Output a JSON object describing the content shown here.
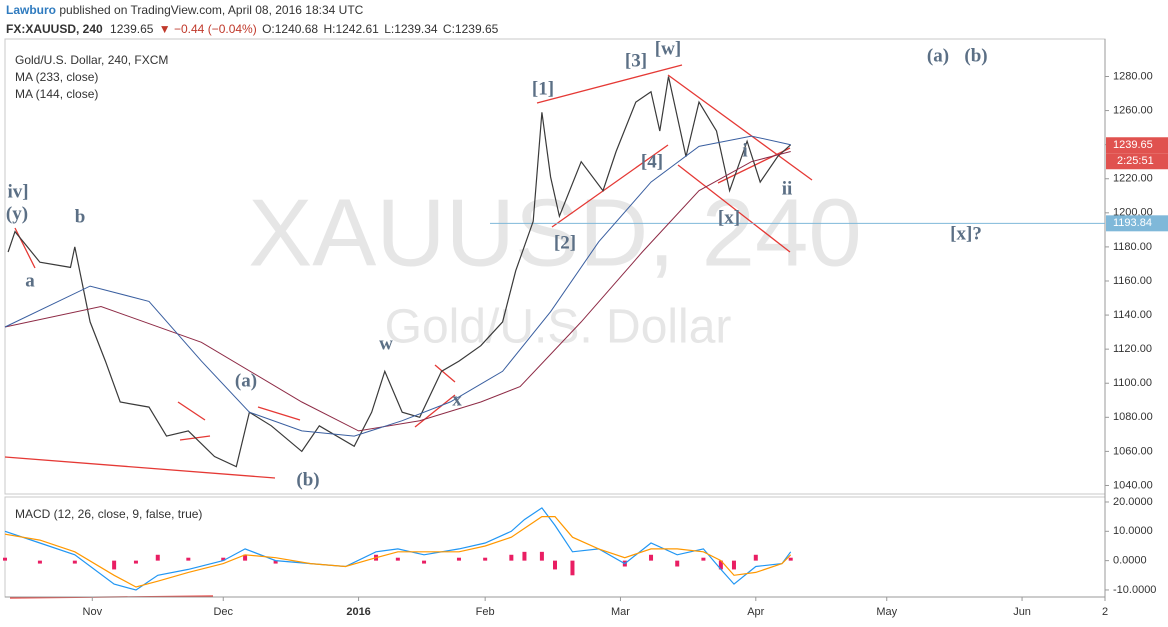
{
  "header": {
    "author": "Lawburo",
    "published": "published on TradingView.com, April 08, 2016 18:34 UTC",
    "symbol": "FX:XAUUSD, 240",
    "last": "1239.65",
    "change": "▼ −0.44 (−0.04%)",
    "open": "O:1240.68",
    "high": "H:1242.61",
    "low": "L:1239.34",
    "close": "C:1239.65"
  },
  "chart_data": [
    {
      "type": "line",
      "title": "Gold/U.S. Dollar, 240, FXCM",
      "watermark": "XAUUSD, 240",
      "watermark_subtitle": "Gold/U.S. Dollar",
      "xlim": [
        0,
        252
      ],
      "xticks": [
        {
          "value": 20,
          "label": "Nov"
        },
        {
          "value": 50,
          "label": "Dec"
        },
        {
          "value": 81,
          "label": "2016"
        },
        {
          "value": 110,
          "label": "Feb"
        },
        {
          "value": 141,
          "label": "Mar"
        },
        {
          "value": 172,
          "label": "Apr"
        },
        {
          "value": 202,
          "label": "May"
        },
        {
          "value": 233,
          "label": "Jun"
        },
        {
          "value": 252,
          "label": "2"
        }
      ],
      "ylim": [
        1035,
        1302
      ],
      "yticks": [
        {
          "value": 1040,
          "label": "1040.00"
        },
        {
          "value": 1060,
          "label": "1060.00"
        },
        {
          "value": 1080,
          "label": "1080.00"
        },
        {
          "value": 1100,
          "label": "1100.00"
        },
        {
          "value": 1120,
          "label": "1120.00"
        },
        {
          "value": 1140,
          "label": "1140.00"
        },
        {
          "value": 1160,
          "label": "1160.00"
        },
        {
          "value": 1180,
          "label": "1180.00"
        },
        {
          "value": 1200,
          "label": "1200.00"
        },
        {
          "value": 1220,
          "label": "1220.00"
        },
        {
          "value": 1240,
          "label": "1240.00"
        },
        {
          "value": 1260,
          "label": "1260.00"
        },
        {
          "value": 1280,
          "label": "1280.00"
        }
      ],
      "series": [
        {
          "color": "#3a3a3a",
          "x": [
            0.7,
            2.3,
            8,
            15,
            16,
            19.5,
            23,
            26.4,
            33,
            37,
            42,
            48,
            53,
            56,
            61,
            68,
            72,
            80,
            84,
            87,
            91,
            95,
            100,
            104,
            109,
            114,
            117,
            121,
            123,
            125,
            127,
            132,
            137,
            140,
            144.5,
            148,
            150,
            152,
            156,
            159,
            163,
            166,
            170,
            173,
            177,
            180
          ],
          "values": [
            1177,
            1189,
            1171,
            1168,
            1180,
            1136,
            1113,
            1089,
            1086,
            1069,
            1072,
            1057,
            1051,
            1083,
            1075,
            1060,
            1075,
            1063,
            1083,
            1107,
            1083,
            1080,
            1107,
            1113,
            1122,
            1136,
            1166,
            1195,
            1259,
            1221,
            1198,
            1230,
            1213,
            1236,
            1265,
            1271,
            1248,
            1280,
            1233,
            1265,
            1248,
            1213,
            1242,
            1218,
            1233,
            1240
          ]
        },
        {
          "name": "MA (233, close)",
          "color": "#8e2b46",
          "x": [
            0,
            22,
            45,
            68,
            81,
            95,
            109,
            118,
            132,
            146,
            159,
            171,
            180
          ],
          "values": [
            1133,
            1145,
            1124,
            1089,
            1072,
            1078,
            1089,
            1098,
            1136,
            1177,
            1213,
            1230,
            1236
          ]
        },
        {
          "name": "MA (144, close)",
          "color": "#3a5fa0",
          "x": [
            0,
            19.5,
            33,
            45,
            56,
            68,
            80,
            91,
            102,
            114,
            125,
            136,
            148,
            159,
            171,
            180
          ],
          "values": [
            1133,
            1157,
            1148,
            1113,
            1083,
            1072,
            1069,
            1078,
            1089,
            1107,
            1142,
            1183,
            1218,
            1239,
            1245,
            1240
          ]
        }
      ],
      "hline": 1193.84,
      "hline_color": "#7fb8d9",
      "last_price": 1239.65,
      "last_color": "#e0524f",
      "countdown": "2:25:51",
      "annotations": [
        "iv]",
        "(y)",
        "a",
        "b",
        "(a)",
        "(b)",
        "w",
        "x",
        "[1]",
        "[2]",
        "[3]",
        "[w]",
        "[4]",
        "[x]",
        "i",
        "ii",
        "(a)",
        "(b)",
        "[x]?"
      ]
    },
    {
      "type": "line",
      "title": "MACD (12, 26, close, 9, false, true)",
      "xlim": [
        0,
        252
      ],
      "ylim": [
        -12.4,
        21.7
      ],
      "yticks": [
        {
          "value": 20,
          "label": "20.0000"
        },
        {
          "value": 10,
          "label": "10.0000"
        },
        {
          "value": 0,
          "label": "0.0000"
        },
        {
          "value": -10,
          "label": "-10.0000"
        }
      ],
      "x": [
        0,
        8,
        16,
        25,
        30,
        35,
        42,
        50,
        55,
        62,
        70,
        78,
        85,
        90,
        96,
        104,
        110,
        116,
        119,
        123,
        126,
        130,
        136,
        142,
        148,
        154,
        160,
        164,
        167,
        172,
        178,
        180
      ],
      "series": [
        {
          "color": "#2196f3",
          "values": [
            10,
            6,
            2,
            -8,
            -10,
            -5,
            -3,
            0,
            4,
            0,
            -1,
            -2,
            3,
            4,
            2,
            4,
            6,
            10,
            14,
            18,
            12,
            3,
            4,
            -1,
            6,
            2,
            4,
            -3,
            -8,
            -2,
            -1,
            3
          ]
        },
        {
          "color": "#ff9800",
          "values": [
            9,
            7,
            3,
            -5,
            -9,
            -7,
            -4,
            -1,
            2,
            1,
            -1,
            -2,
            1,
            3,
            3,
            3,
            5,
            8,
            11,
            15,
            15,
            8,
            4,
            1,
            4,
            4,
            3,
            0,
            -5,
            -4,
            -1,
            2
          ]
        }
      ],
      "histogram": {
        "color": "#e91e63",
        "values": [
          1,
          -1,
          -1,
          -3,
          -1,
          2,
          1,
          1,
          2,
          -1,
          0,
          0,
          2,
          1,
          -1,
          1,
          1,
          2,
          3,
          3,
          -3,
          -5,
          0,
          -2,
          2,
          -2,
          1,
          -3,
          -3,
          2,
          0,
          1
        ]
      }
    }
  ]
}
